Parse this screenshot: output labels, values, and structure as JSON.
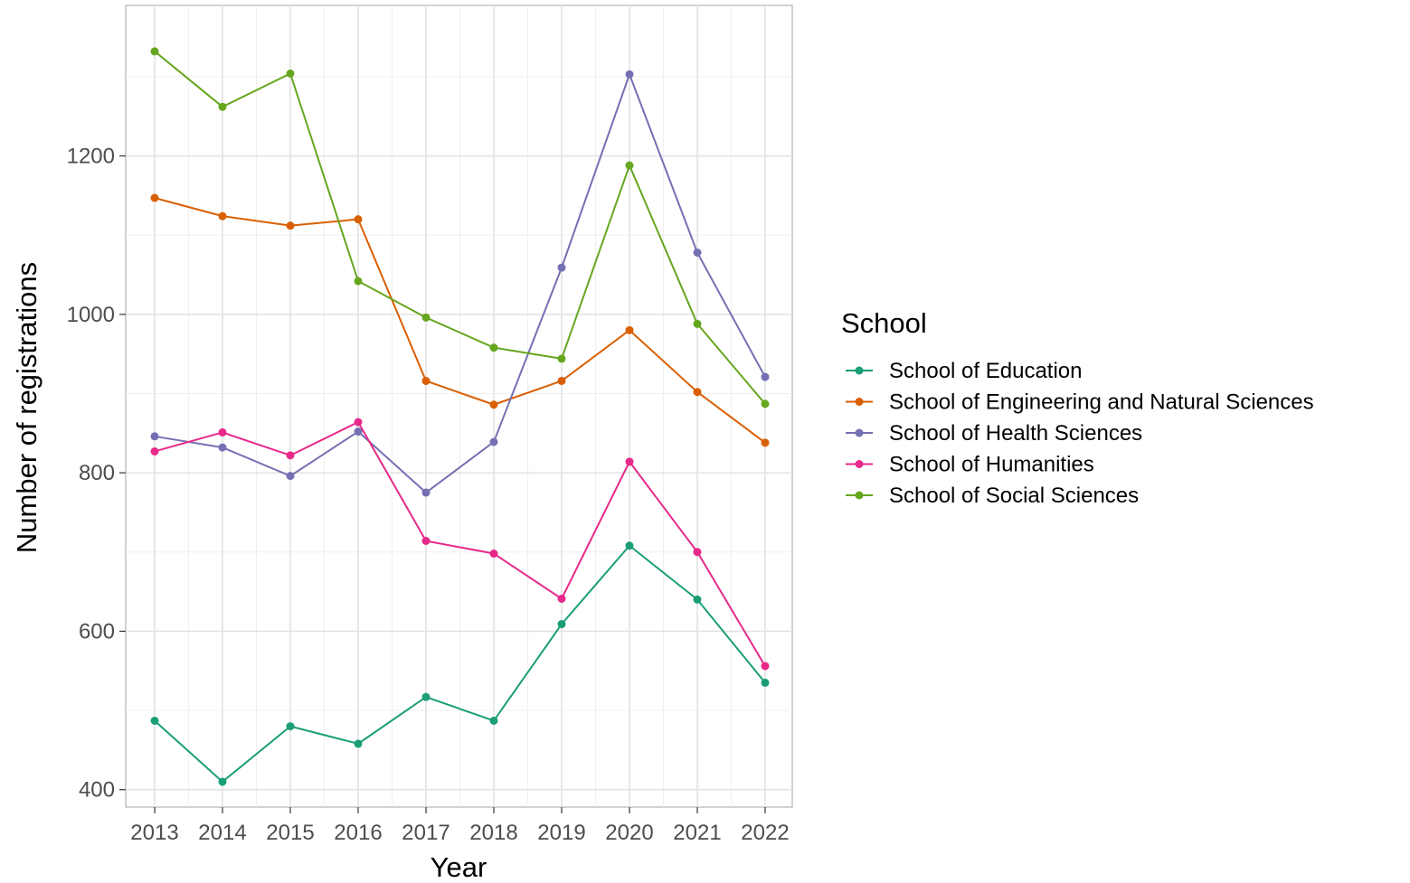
{
  "chart_data": {
    "type": "line",
    "xlabel": "Year",
    "ylabel": "Number of registrations",
    "x": [
      2013,
      2014,
      2015,
      2016,
      2017,
      2018,
      2019,
      2020,
      2021,
      2022
    ],
    "ylim": [
      378,
      1390
    ],
    "y_ticks": [
      400,
      600,
      800,
      1000,
      1200
    ],
    "grid": true,
    "legend": {
      "title": "School",
      "position": "right"
    },
    "series": [
      {
        "name": "School of Education",
        "color": "#1b9e77",
        "values": [
          487,
          410,
          480,
          458,
          517,
          487,
          609,
          708,
          640,
          535
        ]
      },
      {
        "name": "School of Engineering and Natural Sciences",
        "color": "#d95f02",
        "values": [
          1147,
          1124,
          1112,
          1120,
          916,
          886,
          916,
          980,
          902,
          838
        ]
      },
      {
        "name": "School of Health Sciences",
        "color": "#7570b3",
        "values": [
          846,
          832,
          796,
          852,
          775,
          839,
          1059,
          1303,
          1078,
          921
        ]
      },
      {
        "name": "School of Humanities",
        "color": "#e7298a",
        "values": [
          827,
          851,
          822,
          864,
          714,
          698,
          641,
          814,
          700,
          556
        ]
      },
      {
        "name": "School of Social Sciences",
        "color": "#66a61e",
        "values": [
          1332,
          1262,
          1304,
          1042,
          996,
          958,
          944,
          1188,
          988,
          887
        ]
      }
    ]
  }
}
